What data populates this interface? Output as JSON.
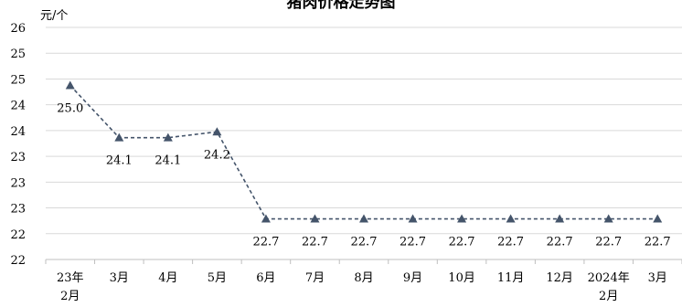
{
  "chart_data": {
    "type": "line",
    "title": "猪肉价格走势图",
    "ylabel": "元/个",
    "xlabel": "",
    "categories": [
      "23年2月",
      "3月",
      "4月",
      "5月",
      "6月",
      "7月",
      "8月",
      "9月",
      "10月",
      "11月",
      "12月",
      "2024年2月",
      "3月"
    ],
    "values": [
      25.0,
      24.1,
      24.1,
      24.2,
      22.7,
      22.7,
      22.7,
      22.7,
      22.7,
      22.7,
      22.7,
      22.7,
      22.7
    ],
    "data_labels": [
      "25.0",
      "24.1",
      "24.1",
      "24.2",
      "22.7",
      "22.7",
      "22.7",
      "22.7",
      "22.7",
      "22.7",
      "22.7",
      "22.7",
      "22.7"
    ],
    "y_tick_labels": [
      "26",
      "25",
      "25",
      "24",
      "24",
      "23",
      "23",
      "23",
      "22",
      "22"
    ],
    "ylim": [
      22.0,
      26.0
    ],
    "grid": true,
    "legend": "none",
    "line_color": "#44546a",
    "marker": "triangle",
    "line_style": "dashed"
  }
}
